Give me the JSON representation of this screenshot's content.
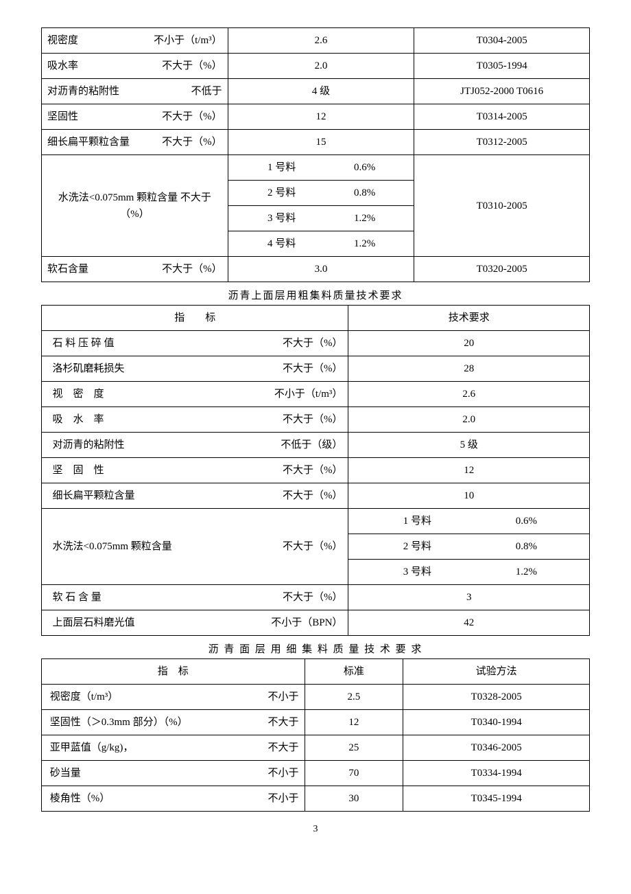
{
  "table1": {
    "rows": [
      {
        "name": "视密度",
        "cond": "不小于（t/m³）",
        "val": "2.6",
        "method": "T0304-2005"
      },
      {
        "name": "吸水率",
        "cond": "不大于（%）",
        "val": "2.0",
        "method": "T0305-1994"
      },
      {
        "name": "对沥青的粘附性",
        "cond": "不低于",
        "val": "4 级",
        "method": "JTJ052-2000 T0616"
      },
      {
        "name": "坚固性",
        "cond": "不大于（%）",
        "val": "12",
        "method": "T0314-2005"
      },
      {
        "name": "细长扁平颗粒含量",
        "cond": "不大于（%）",
        "val": "15",
        "method": "T0312-2005"
      }
    ],
    "wash": {
      "label": "水洗法<0.075mm 颗粒含量 不大于（%）",
      "sub": [
        {
          "l": "1 号料",
          "r": "0.6%"
        },
        {
          "l": "2 号料",
          "r": "0.8%"
        },
        {
          "l": "3 号料",
          "r": "1.2%"
        },
        {
          "l": "4 号料",
          "r": "1.2%"
        }
      ],
      "method": "T0310-2005"
    },
    "soft": {
      "name": "软石含量",
      "cond": "不大于（%）",
      "val": "3.0",
      "method": "T0320-2005"
    }
  },
  "caption2": "沥青上面层用粗集料质量技术要求",
  "table2": {
    "header": {
      "a": "指　　标",
      "b": "技术要求"
    },
    "rows": [
      {
        "name": "石 料 压 碎 值",
        "cond": "不大于（%）",
        "val": "20"
      },
      {
        "name": "洛杉矶磨耗损失",
        "cond": "不大于（%）",
        "val": "28"
      },
      {
        "name": "视　密　度",
        "cond": "不小于（t/m³）",
        "val": "2.6"
      },
      {
        "name": "吸　水　率",
        "cond": "不大于（%）",
        "val": "2.0"
      },
      {
        "name": "对沥青的粘附性",
        "cond": "不低于（级）",
        "val": "5 级"
      },
      {
        "name": "坚　固　性",
        "cond": "不大于（%）",
        "val": "12"
      },
      {
        "name": "细长扁平颗粒含量",
        "cond": "不大于（%）",
        "val": "10"
      }
    ],
    "wash": {
      "name": "水洗法<0.075mm 颗粒含量",
      "cond": "不大于（%）",
      "sub": [
        {
          "l": "1 号料",
          "r": "0.6%"
        },
        {
          "l": "2 号料",
          "r": "0.8%"
        },
        {
          "l": "3 号料",
          "r": "1.2%"
        }
      ]
    },
    "soft": {
      "name": "软 石 含 量",
      "cond": "不大于（%）",
      "val": "3"
    },
    "polish": {
      "name": "上面层石料磨光值",
      "cond": "不小于（BPN）",
      "val": "42"
    }
  },
  "caption3": "沥 青 面 层 用 细 集 料 质 量 技 术 要 求",
  "table3": {
    "header": {
      "a": "指　标",
      "b": "标准",
      "c": "试验方法"
    },
    "rows": [
      {
        "name": "视密度（t/m³）",
        "cond": "不小于",
        "val": "2.5",
        "method": "T0328-2005"
      },
      {
        "name": "坚固性（＞0.3mm 部分）（%）",
        "cond": "不大于",
        "val": "12",
        "method": "T0340-1994"
      },
      {
        "name": "亚甲蓝值（g/kg)，",
        "cond": "不大于",
        "val": "25",
        "method": "T0346-2005"
      },
      {
        "name": "砂当量",
        "cond": "不小于",
        "val": "70",
        "method": "T0334-1994"
      },
      {
        "name": "棱角性（%）",
        "cond": "不小于",
        "val": "30",
        "method": "T0345-1994"
      }
    ]
  },
  "pageNumber": "3"
}
